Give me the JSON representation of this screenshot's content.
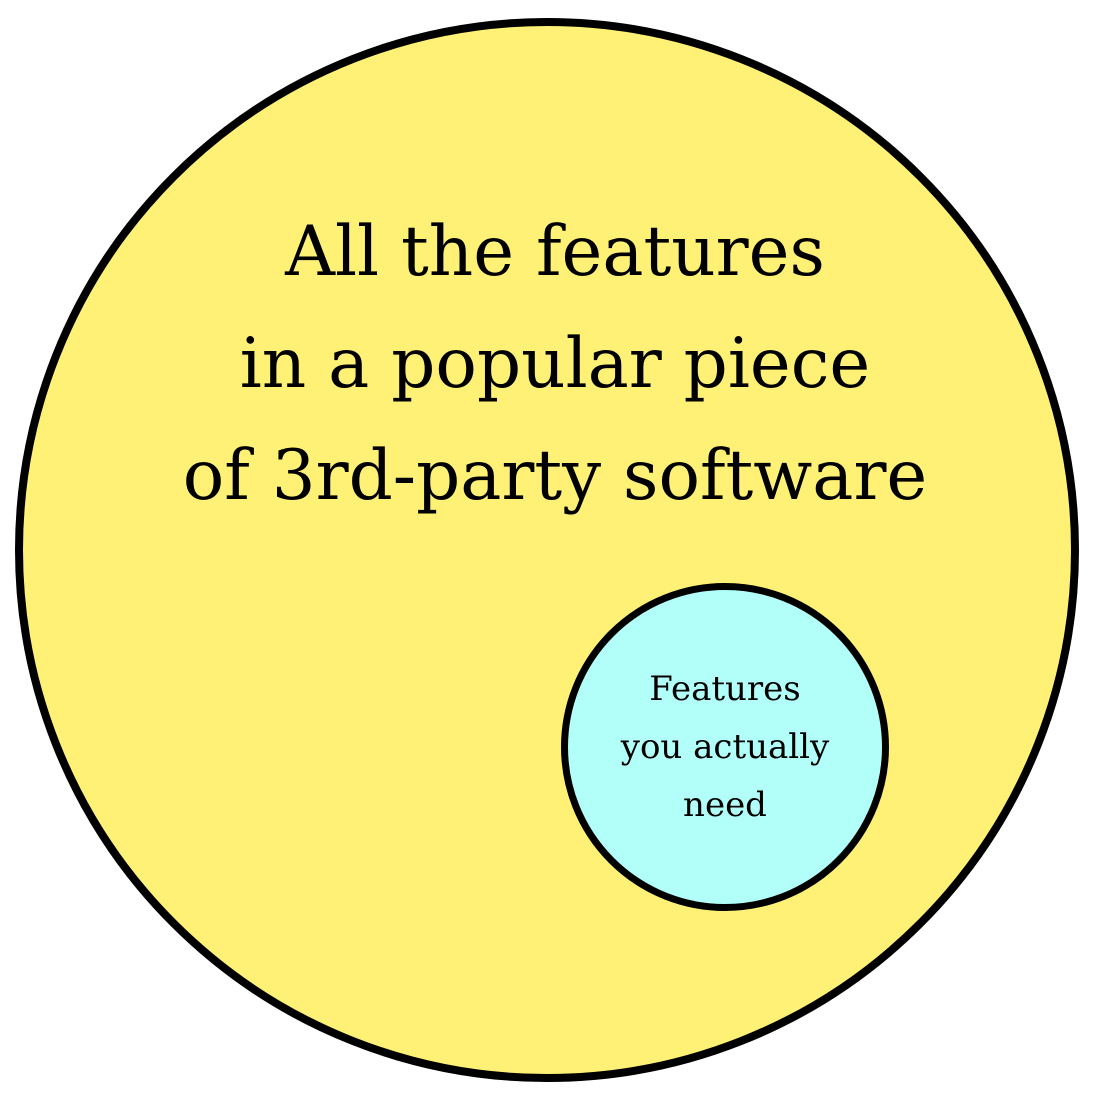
{
  "diagram": {
    "outer_set": {
      "lines": [
        "All the features",
        "in a popular piece",
        "of 3rd-party software"
      ],
      "fill": "#fff176"
    },
    "inner_set": {
      "lines": [
        "Features",
        "you actually",
        "need"
      ],
      "fill": "#b2fff9"
    },
    "stroke": "#000000"
  }
}
